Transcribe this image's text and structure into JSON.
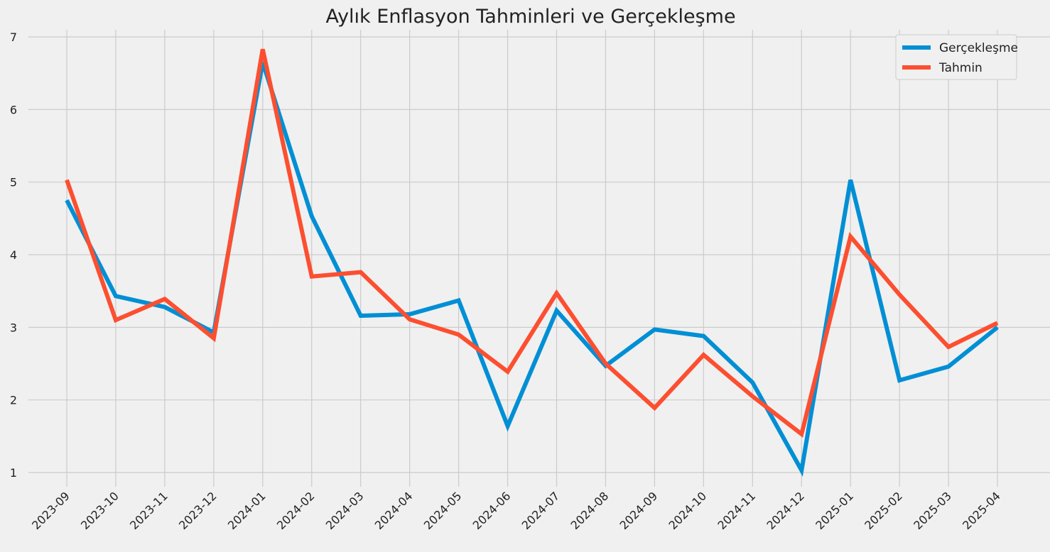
{
  "chart_data": {
    "type": "line",
    "title": "Aylık Enflasyon Tahminleri ve Gerçekleşme",
    "xlabel": "",
    "ylabel": "",
    "categories": [
      "2023-09",
      "2023-10",
      "2023-11",
      "2023-12",
      "2024-01",
      "2024-02",
      "2024-03",
      "2024-04",
      "2024-05",
      "2024-06",
      "2024-07",
      "2024-08",
      "2024-09",
      "2024-10",
      "2024-11",
      "2024-12",
      "2025-01",
      "2025-02",
      "2025-03",
      "2025-04"
    ],
    "yticks": [
      1,
      2,
      3,
      4,
      5,
      6,
      7
    ],
    "ylim": [
      0.7,
      7.15
    ],
    "grid": true,
    "legend_position": "top-right",
    "series": [
      {
        "name": "Gerçekleşme",
        "color": "#008fd5",
        "values": [
          4.75,
          3.43,
          3.28,
          2.93,
          6.65,
          4.53,
          3.16,
          3.18,
          3.37,
          1.64,
          3.23,
          2.47,
          2.97,
          2.88,
          2.24,
          1.03,
          5.03,
          2.27,
          2.46,
          3.0
        ]
      },
      {
        "name": "Tahmin",
        "color": "#fc4f30",
        "values": [
          5.03,
          3.1,
          3.39,
          2.85,
          6.83,
          3.7,
          3.76,
          3.11,
          2.9,
          2.39,
          3.47,
          2.5,
          1.89,
          2.62,
          2.05,
          1.53,
          4.25,
          3.45,
          2.73,
          3.06
        ]
      }
    ]
  }
}
